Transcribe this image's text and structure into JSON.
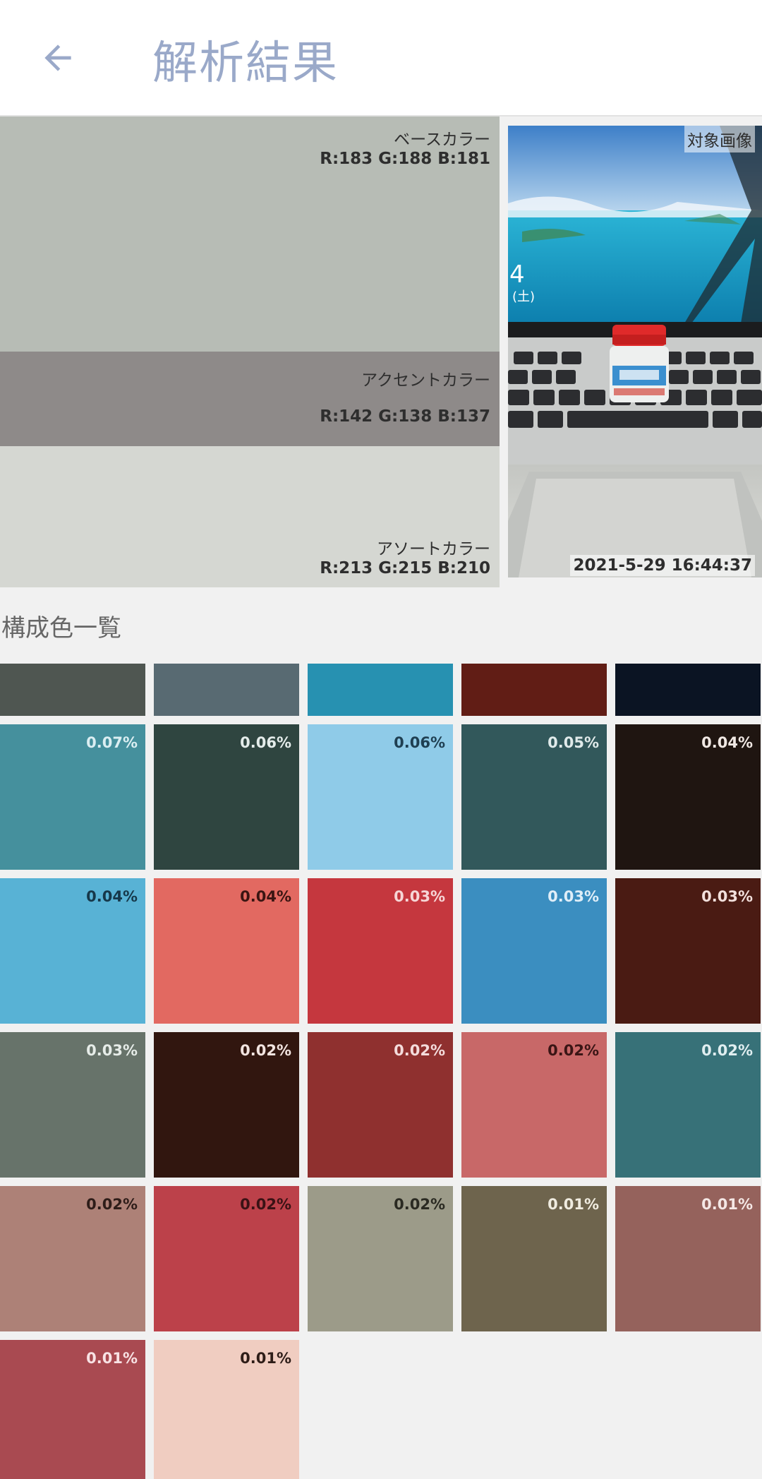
{
  "header": {
    "title": "解析結果"
  },
  "summary": {
    "base": {
      "label": "ベースカラー",
      "rgb": "R:183 G:188 B:181",
      "color": "#b7bcb5"
    },
    "accent": {
      "label": "アクセントカラー",
      "rgb": "R:142 G:138 B:137",
      "color": "#8e8a89"
    },
    "assort": {
      "label": "アソートカラー",
      "rgb": "R:213 G:215 B:210",
      "color": "#d5d7d2"
    },
    "photo": {
      "label": "対象画像",
      "timestamp": "2021-5-29 16:44:37"
    }
  },
  "palette": {
    "title": "構成色一覧",
    "colors": [
      {
        "color": "#4f5651",
        "pct": ""
      },
      {
        "color": "#586a72",
        "pct": ""
      },
      {
        "color": "#2791b1",
        "pct": ""
      },
      {
        "color": "#611d15",
        "pct": ""
      },
      {
        "color": "#0b1423",
        "pct": ""
      },
      {
        "color": "#45909d",
        "pct": "0.07%",
        "text": "#dbeef2"
      },
      {
        "color": "#2f4540",
        "pct": "0.06%",
        "text": "#e4ecea"
      },
      {
        "color": "#8fcbe8",
        "pct": "0.06%",
        "text": "#1f3f52"
      },
      {
        "color": "#32585b",
        "pct": "0.05%",
        "text": "#e0eaea"
      },
      {
        "color": "#1f1511",
        "pct": "0.04%",
        "text": "#f0e8e4"
      },
      {
        "color": "#58b2d5",
        "pct": "0.04%",
        "text": "#16384a"
      },
      {
        "color": "#e26961",
        "pct": "0.04%",
        "text": "#3a1512"
      },
      {
        "color": "#c5373e",
        "pct": "0.03%",
        "text": "#f6d6d6"
      },
      {
        "color": "#3b8ec0",
        "pct": "0.03%",
        "text": "#e0eef8"
      },
      {
        "color": "#4a1b13",
        "pct": "0.03%",
        "text": "#f2e0dc"
      },
      {
        "color": "#67736a",
        "pct": "0.03%",
        "text": "#e6ece8"
      },
      {
        "color": "#31160f",
        "pct": "0.02%",
        "text": "#f2e4e0"
      },
      {
        "color": "#8f302f",
        "pct": "0.02%",
        "text": "#f4dcdc"
      },
      {
        "color": "#c86868",
        "pct": "0.02%",
        "text": "#3a1515"
      },
      {
        "color": "#377178",
        "pct": "0.02%",
        "text": "#e0eef0"
      },
      {
        "color": "#ad8177",
        "pct": "0.02%",
        "text": "#2e1d19"
      },
      {
        "color": "#bc414a",
        "pct": "0.02%",
        "text": "#3a1215"
      },
      {
        "color": "#9c9b89",
        "pct": "0.02%",
        "text": "#2a2a22"
      },
      {
        "color": "#6e644d",
        "pct": "0.01%",
        "text": "#f0ece0"
      },
      {
        "color": "#95625c",
        "pct": "0.01%",
        "text": "#f5e8e6"
      },
      {
        "color": "#a94a51",
        "pct": "0.01%",
        "text": "#f8e2e4"
      },
      {
        "color": "#f0cdc1",
        "pct": "0.01%",
        "text": "#2e1d18"
      }
    ]
  }
}
